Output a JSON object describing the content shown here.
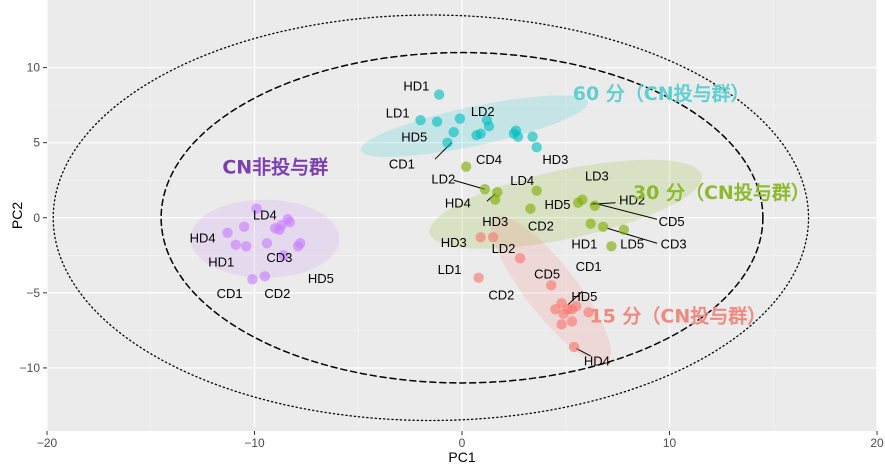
{
  "chart_data": {
    "type": "scatter",
    "xlabel": "PC1",
    "ylabel": "PC2",
    "xlim": [
      -20,
      20
    ],
    "ylim": [
      -14.2,
      14.5
    ],
    "xticks": [
      -20,
      -10,
      0,
      10,
      20
    ],
    "yticks": [
      -10,
      -5,
      0,
      5,
      10
    ],
    "grid": true,
    "outer_ellipses": [
      {
        "style": "dashed",
        "center": [
          0,
          0
        ],
        "rx": 14.5,
        "ry": 11
      },
      {
        "style": "dotted",
        "center": [
          -1.5,
          0
        ],
        "rx": 18.2,
        "ry": 13.5
      }
    ],
    "series": [
      {
        "name": "CN非投与群",
        "color": "#c77cff",
        "label_color": "#7c3fb0",
        "ellipse": {
          "cx": -9.5,
          "cy": -1.4,
          "rx": 3.6,
          "ry": 2.6,
          "angle": 0
        },
        "label_pos": [
          -9,
          3.4
        ],
        "points": [
          [
            -11.3,
            -1
          ],
          [
            -10.5,
            -0.6
          ],
          [
            -9.9,
            0.6
          ],
          [
            -9.4,
            -1.7
          ],
          [
            -9,
            -0.7
          ],
          [
            -8.7,
            -0.5
          ],
          [
            -8.4,
            -0.1
          ],
          [
            -8.3,
            -0.3
          ],
          [
            -7.9,
            -1.9
          ],
          [
            -7.8,
            -1.7
          ],
          [
            -8.6,
            -2.5
          ],
          [
            -8.8,
            -0.8
          ],
          [
            -10.1,
            -4.1
          ],
          [
            -9.5,
            -3.9
          ],
          [
            -10.9,
            -1.8
          ],
          [
            -10.4,
            -1.9
          ]
        ],
        "labels": [
          {
            "text": "LD4",
            "x": -9.5,
            "y": 0.2
          },
          {
            "text": "HD4",
            "x": -12.5,
            "y": -1.3
          },
          {
            "text": "HD1",
            "x": -11.6,
            "y": -2.9
          },
          {
            "text": "CD3",
            "x": -8.8,
            "y": -2.6
          },
          {
            "text": "HD5",
            "x": -6.8,
            "y": -4.0
          },
          {
            "text": "CD1",
            "x": -11.2,
            "y": -5.0
          },
          {
            "text": "CD2",
            "x": -8.9,
            "y": -5.0
          }
        ]
      },
      {
        "name": "60 分（CN投与群）",
        "color": "#00bfc4",
        "label_color": "#5fcfd1",
        "ellipse": {
          "cx": 0.6,
          "cy": 6.1,
          "rx": 5.6,
          "ry": 1.3,
          "angle": -12
        },
        "label_pos": [
          9.6,
          8.3
        ],
        "points": [
          [
            -1.1,
            8.2
          ],
          [
            -2,
            6.5
          ],
          [
            -1.2,
            6.4
          ],
          [
            -0.4,
            5.7
          ],
          [
            -0.7,
            5
          ],
          [
            -0.1,
            6.6
          ],
          [
            0.7,
            5.5
          ],
          [
            0.9,
            5.6
          ],
          [
            1.3,
            6.1
          ],
          [
            1.2,
            6.5
          ],
          [
            2.5,
            5.6
          ],
          [
            2.6,
            5.8
          ],
          [
            2.7,
            5.4
          ],
          [
            3.4,
            5.4
          ],
          [
            3.6,
            4.7
          ]
        ],
        "labels": [
          {
            "text": "HD1",
            "x": -2.2,
            "y": 8.8
          },
          {
            "text": "LD1",
            "x": -3.1,
            "y": 7.0
          },
          {
            "text": "LD2",
            "x": 1.0,
            "y": 7.1
          },
          {
            "text": "HD5",
            "x": -2.3,
            "y": 5.4
          },
          {
            "text": "CD4",
            "x": 1.3,
            "y": 3.9
          },
          {
            "text": "HD3",
            "x": 4.5,
            "y": 3.9
          },
          {
            "text": "CD1",
            "x": -2.9,
            "y": 3.6
          }
        ]
      },
      {
        "name": "30 分（CN投与群）",
        "color": "#7cae00",
        "label_color": "#8cba2e",
        "ellipse": {
          "cx": 5,
          "cy": 0.9,
          "rx": 6.7,
          "ry": 2.3,
          "angle": -12
        },
        "label_pos": [
          12.5,
          1.7
        ],
        "points": [
          [
            0.2,
            3.4
          ],
          [
            1.1,
            1.9
          ],
          [
            1.7,
            1.7
          ],
          [
            1.6,
            1.2
          ],
          [
            3.6,
            1.8
          ],
          [
            3.3,
            0.6
          ],
          [
            5.6,
            1
          ],
          [
            5.8,
            1.2
          ],
          [
            6.4,
            0.8
          ],
          [
            6.2,
            -0.4
          ],
          [
            6.8,
            -0.6
          ],
          [
            7.2,
            -1.9
          ],
          [
            7.8,
            -0.8
          ]
        ],
        "labels": [
          {
            "text": "LD3",
            "x": 6.5,
            "y": 2.8
          },
          {
            "text": "LD2",
            "x": -0.9,
            "y": 2.6
          },
          {
            "text": "LD4",
            "x": 2.9,
            "y": 2.5
          },
          {
            "text": "HD4",
            "x": -0.2,
            "y": 1.0
          },
          {
            "text": "HD5",
            "x": 4.6,
            "y": 0.9
          },
          {
            "text": "HD2",
            "x": 8.2,
            "y": 1.2
          },
          {
            "text": "HD3",
            "x": 1.6,
            "y": -0.2
          },
          {
            "text": "CD2",
            "x": 3.8,
            "y": -0.5
          },
          {
            "text": "CD5",
            "x": 10.1,
            "y": -0.2
          },
          {
            "text": "HD1",
            "x": 5.9,
            "y": -1.7
          },
          {
            "text": "LD5",
            "x": 8.2,
            "y": -1.7
          },
          {
            "text": "CD3",
            "x": 10.2,
            "y": -1.7
          },
          {
            "text": "CD1",
            "x": 6.1,
            "y": -3.2
          }
        ]
      },
      {
        "name": "15 分（CN投与群）",
        "color": "#f8766d",
        "label_color": "#f08a80",
        "ellipse": {
          "cx": 4.3,
          "cy": -4.8,
          "rx": 4.4,
          "ry": 1.7,
          "angle": 52
        },
        "label_pos": [
          10.4,
          -6.5
        ],
        "points": [
          [
            0.8,
            -4.0
          ],
          [
            0.9,
            -1.3
          ],
          [
            1.5,
            -1.3
          ],
          [
            2.8,
            -2.7
          ],
          [
            4.3,
            -4.5
          ],
          [
            4.5,
            -6.1
          ],
          [
            4.8,
            -5.7
          ],
          [
            4.9,
            -6.4
          ],
          [
            5.1,
            -6.1
          ],
          [
            5.3,
            -6.1
          ],
          [
            5.5,
            -5.9
          ],
          [
            6.1,
            -6.3
          ],
          [
            5.3,
            -6.9
          ],
          [
            4.8,
            -7.1
          ],
          [
            5.4,
            -8.6
          ]
        ],
        "labels": [
          {
            "text": "HD3",
            "x": -0.4,
            "y": -1.6
          },
          {
            "text": "LD2",
            "x": 2.0,
            "y": -2.0
          },
          {
            "text": "LD1",
            "x": -0.6,
            "y": -3.4
          },
          {
            "text": "CD5",
            "x": 4.1,
            "y": -3.7
          },
          {
            "text": "CD2",
            "x": 1.9,
            "y": -5.1
          },
          {
            "text": "HD5",
            "x": 5.9,
            "y": -5.2
          },
          {
            "text": "HD4",
            "x": 6.5,
            "y": -9.5
          }
        ]
      }
    ],
    "connectors": [
      {
        "from": [
          -1.3,
          3.9
        ],
        "to": [
          -0.5,
          5
        ]
      },
      {
        "from": [
          -0.4,
          2.5
        ],
        "to": [
          1.1,
          1.9
        ]
      },
      {
        "from": [
          1.2,
          1.1
        ],
        "to": [
          1.6,
          1.6
        ]
      },
      {
        "from": [
          6.2,
          0.9
        ],
        "to": [
          7.4,
          1.0
        ]
      },
      {
        "from": [
          6.3,
          1.0
        ],
        "to": [
          9.4,
          -0.1
        ]
      },
      {
        "from": [
          7.0,
          -0.7
        ],
        "to": [
          9.4,
          -1.7
        ]
      },
      {
        "from": [
          5.8,
          -4.9
        ],
        "to": [
          5.1,
          -5.8
        ]
      },
      {
        "from": [
          5.5,
          -8.7
        ],
        "to": [
          6.2,
          -9.2
        ]
      }
    ]
  }
}
